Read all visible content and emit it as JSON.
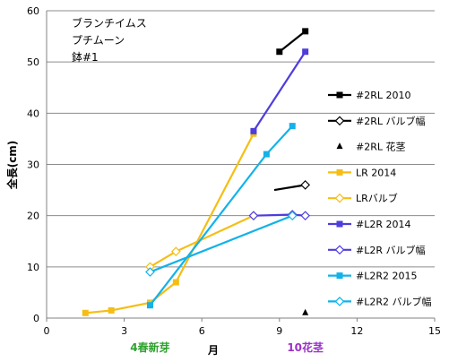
{
  "chart_data": {
    "type": "line",
    "title": "",
    "annotation_lines": [
      "ブランチイムス",
      "プチムーン",
      "鉢#1"
    ],
    "xlabel": "月",
    "ylabel": "全長(cm)",
    "xlim": [
      0,
      15
    ],
    "ylim": [
      0,
      60
    ],
    "xticks": [
      0,
      3,
      6,
      9,
      12,
      15
    ],
    "yticks": [
      0,
      10,
      20,
      30,
      40,
      50,
      60
    ],
    "grid": "horizontal",
    "legend_position": "right",
    "x_notes": [
      {
        "x": 4,
        "text": "4春新芽",
        "color": "#2ea12e"
      },
      {
        "x": 10,
        "text": "10花茎",
        "color": "#9b30c8"
      }
    ],
    "series": [
      {
        "name": "#2RL 2010",
        "color": "#000000",
        "marker": "square-filled",
        "x": [
          9,
          10
        ],
        "y": [
          52,
          56
        ]
      },
      {
        "name": "#2RL バルブ幅",
        "color": "#000000",
        "marker": "diamond-open",
        "x": [
          8.8,
          10
        ],
        "y": [
          25,
          26
        ]
      },
      {
        "name": "#2RL 花茎",
        "color": "#000000",
        "marker": "triangle",
        "x": [
          10
        ],
        "y": [
          1
        ]
      },
      {
        "name": "LR 2014",
        "color": "#f5be14",
        "marker": "square-filled",
        "x": [
          1.5,
          2.5,
          4,
          5,
          8
        ],
        "y": [
          1,
          1.5,
          3,
          7,
          36
        ]
      },
      {
        "name": "LRバルブ",
        "color": "#f5be14",
        "marker": "diamond-open",
        "x": [
          4,
          5,
          8
        ],
        "y": [
          10,
          13,
          20
        ]
      },
      {
        "name": "#L2R 2014",
        "color": "#4e3ddc",
        "marker": "square-filled",
        "x": [
          8,
          10
        ],
        "y": [
          36.5,
          52
        ]
      },
      {
        "name": "#L2R バルブ幅",
        "color": "#4e3ddc",
        "marker": "diamond-open",
        "x": [
          8,
          9.5,
          10
        ],
        "y": [
          20,
          20.2,
          20
        ]
      },
      {
        "name": "#L2R2 2015",
        "color": "#12b2ea",
        "marker": "square-filled",
        "x": [
          4,
          8.5,
          9.5
        ],
        "y": [
          2.5,
          32,
          37.5
        ]
      },
      {
        "name": "#L2R2 バルブ幅",
        "color": "#12b2ea",
        "marker": "diamond-open",
        "x": [
          4,
          9.5
        ],
        "y": [
          9,
          20
        ]
      }
    ]
  }
}
